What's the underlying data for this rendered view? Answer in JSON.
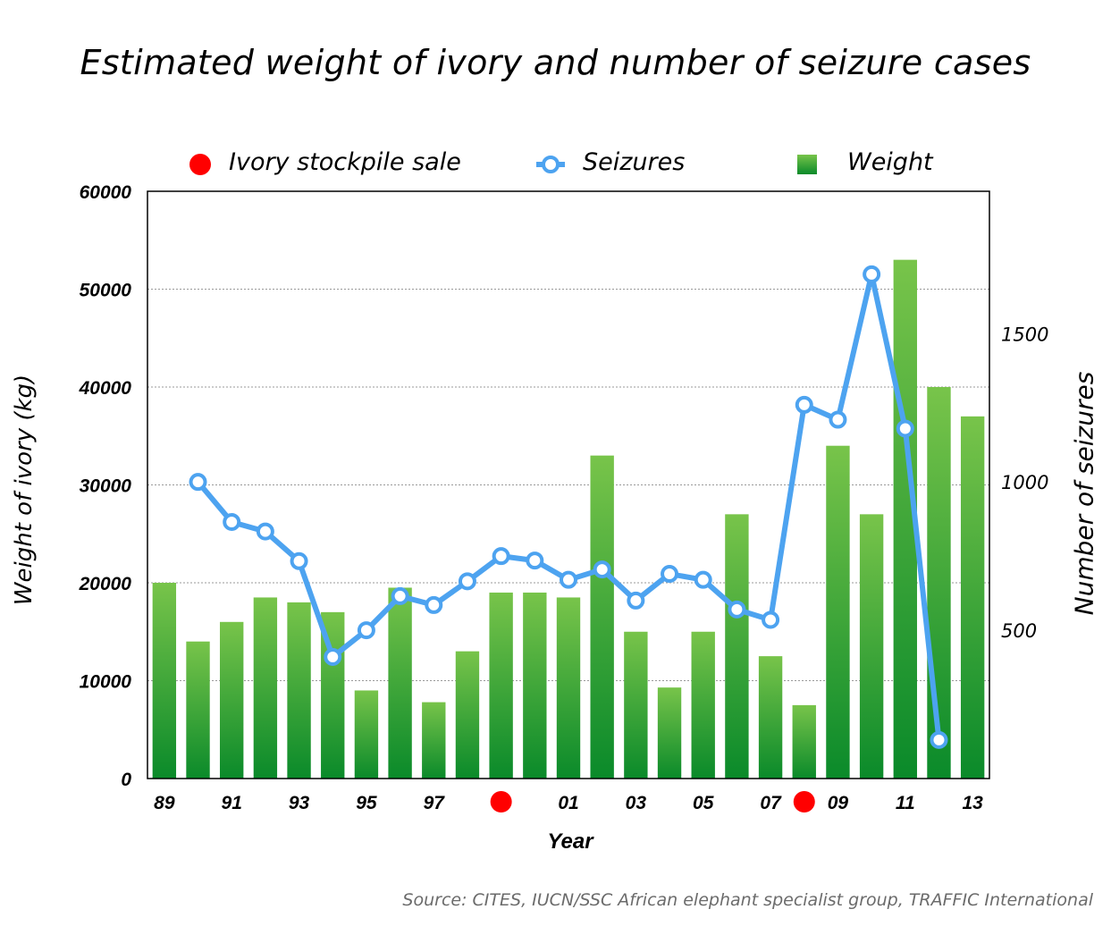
{
  "chart_data": {
    "type": "bar",
    "title": "Estimated weight of ivory and number of seizure cases",
    "xlabel": "Year",
    "ylabel": "Weight of ivory (kg)",
    "y2label": "Number of seizures",
    "source": "Source: CITES, IUCN/SSC African elephant specialist group, TRAFFIC International",
    "legend": {
      "sale_label": "Ivory stockpile sale",
      "seizures_label": "Seizures",
      "weight_label": "Weight",
      "placement": "top"
    },
    "years": [
      "89",
      "90",
      "91",
      "92",
      "93",
      "94",
      "95",
      "96",
      "97",
      "98",
      "99",
      "00",
      "01",
      "02",
      "03",
      "04",
      "05",
      "06",
      "07",
      "08",
      "09",
      "10",
      "11",
      "12",
      "13"
    ],
    "x_tick_labels": [
      "89",
      "",
      "91",
      "",
      "93",
      "",
      "95",
      "",
      "97",
      "",
      "",
      "",
      "01",
      "",
      "03",
      "",
      "05",
      "",
      "07",
      "",
      "09",
      "",
      "11",
      "",
      "13"
    ],
    "sale_years": [
      "99",
      "08"
    ],
    "series": [
      {
        "name": "Weight",
        "axis": "left",
        "kind": "bar",
        "values": [
          20000,
          14000,
          16000,
          18500,
          18000,
          17000,
          9000,
          19500,
          7800,
          13000,
          19000,
          19000,
          18500,
          33000,
          15000,
          9300,
          15000,
          27000,
          12500,
          7500,
          34000,
          27000,
          53000,
          40000,
          37000
        ]
      },
      {
        "name": "Seizures",
        "axis": "right",
        "kind": "line",
        "x_start_index": 1,
        "values": [
          1000,
          865,
          833,
          733,
          410,
          500,
          615,
          585,
          665,
          750,
          735,
          670,
          705,
          600,
          690,
          670,
          570,
          535,
          1260,
          1210,
          1700,
          1180,
          130
        ]
      }
    ],
    "ylim": [
      0,
      60000
    ],
    "yticks": [
      0,
      10000,
      20000,
      30000,
      40000,
      50000,
      60000
    ],
    "y2lim": [
      0,
      1980
    ],
    "y2ticks": [
      500,
      1000,
      1500
    ],
    "grid": true,
    "colors": {
      "bar_top": "#78c44a",
      "bar_bottom": "#0a8a2a",
      "line": "#4da3f0",
      "sale_marker": "#ff0000",
      "grid": "#9a9a9a"
    }
  }
}
